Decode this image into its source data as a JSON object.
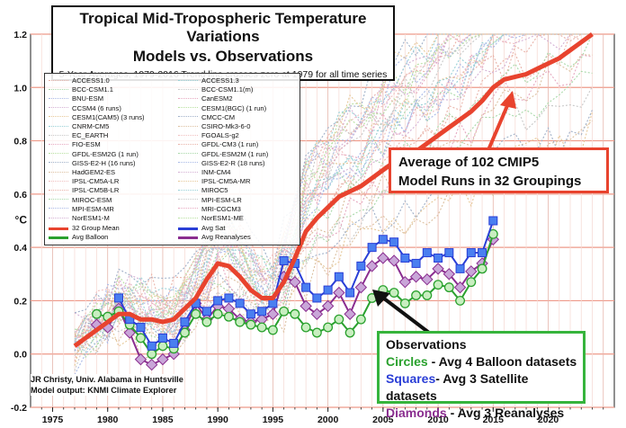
{
  "chart_data": {
    "type": "line",
    "title": "Tropical Mid-Tropospheric Temperature Variations",
    "subtitle": "Models vs. Observations",
    "note": "5-Year Averages, 1979-2016 Trend line crosses zero at 1979 for all time series",
    "ylabel": "°C",
    "xlabel": "",
    "xlim": [
      1973,
      2026
    ],
    "ylim": [
      -0.2,
      1.2
    ],
    "x_ticks": [
      "1975",
      "1980",
      "1985",
      "1990",
      "1995",
      "2000",
      "2005",
      "2010",
      "2015",
      "2020"
    ],
    "y_ticks": [
      "-0.2",
      "0.0",
      "0.2",
      "0.4",
      "0.6",
      "0.8",
      "1.0",
      "1.2"
    ],
    "grid": true,
    "legend_position": "upper-left",
    "model_run_colors": [
      "#e9b2a8",
      "#a8d8a8",
      "#a8b8e6",
      "#d4b0d4",
      "#e6c898",
      "#98d0d6",
      "#c8c8c8",
      "#e6a8c0",
      "#b8e0a0",
      "#a0b0c8",
      "#dcc0a0",
      "#f0c0c0"
    ],
    "model_names_left": [
      "ACCESS1.0",
      "BCC-CSM1.1",
      "BNU-ESM",
      "CCSM4 (6 runs)",
      "CESM1(CAM5) (3 runs)",
      "CNRM-CM5",
      "EC_EARTH",
      "FIO-ESM",
      "GFDL-ESM2G (1 run)",
      "GISS-E2-H (16 runs)",
      "HadGEM2-ES",
      "IPSL-CM5A-LR",
      "IPSL-CM5B-LR",
      "MIROC-ESM",
      "MPI-ESM-MR",
      "NorESM1-M"
    ],
    "model_names_right": [
      "ACCESS1.3",
      "BCC-CSM1.1(m)",
      "CanESM2",
      "CESM1(BGC) (1 run)",
      "CMCC-CM",
      "CSIRO-Mk3-6-0",
      "FGOALS-g2",
      "GFDL-CM3 (1 run)",
      "GFDL-ESM2M (1 run)",
      "GISS-E2-R (18 runs)",
      "INM-CM4",
      "IPSL-CM5A-MR",
      "MIROC5",
      "MPI-ESM-LR",
      "MRI-CGCM3",
      "NorESM1-ME"
    ],
    "series": [
      {
        "name": "32 Group Mean",
        "color": "#e8432e",
        "marker": "none",
        "x": [
          1977,
          1978,
          1979,
          1980,
          1981,
          1982,
          1983,
          1984,
          1985,
          1986,
          1987,
          1988,
          1989,
          1990,
          1991,
          1992,
          1993,
          1994,
          1995,
          1996,
          1997,
          1998,
          1999,
          2000,
          2001,
          2002,
          2003,
          2004,
          2005,
          2006,
          2007,
          2008,
          2009,
          2010,
          2011,
          2012,
          2013,
          2014,
          2015,
          2016,
          2017,
          2018,
          2019,
          2020,
          2021,
          2022,
          2023,
          2024
        ],
        "values": [
          0.03,
          0.06,
          0.09,
          0.12,
          0.15,
          0.15,
          0.13,
          0.13,
          0.12,
          0.13,
          0.17,
          0.21,
          0.28,
          0.34,
          0.33,
          0.29,
          0.24,
          0.21,
          0.21,
          0.27,
          0.36,
          0.46,
          0.51,
          0.55,
          0.59,
          0.61,
          0.63,
          0.66,
          0.69,
          0.72,
          0.75,
          0.76,
          0.79,
          0.82,
          0.85,
          0.88,
          0.91,
          0.95,
          1.0,
          1.03,
          1.04,
          1.05,
          1.07,
          1.09,
          1.11,
          1.14,
          1.17,
          1.2
        ]
      },
      {
        "name": "Avg Sat",
        "color": "#2a3ed6",
        "marker": "square",
        "x": [
          1981,
          1982,
          1983,
          1984,
          1985,
          1986,
          1987,
          1988,
          1989,
          1990,
          1991,
          1992,
          1993,
          1994,
          1995,
          1996,
          1997,
          1998,
          1999,
          2000,
          2001,
          2002,
          2003,
          2004,
          2005,
          2006,
          2007,
          2008,
          2009,
          2010,
          2011,
          2012,
          2013,
          2014,
          2015
        ],
        "values": [
          0.21,
          0.13,
          0.1,
          0.03,
          0.06,
          0.04,
          0.12,
          0.19,
          0.16,
          0.2,
          0.21,
          0.19,
          0.15,
          0.16,
          0.19,
          0.35,
          0.34,
          0.25,
          0.21,
          0.24,
          0.29,
          0.23,
          0.33,
          0.4,
          0.43,
          0.42,
          0.36,
          0.34,
          0.38,
          0.36,
          0.38,
          0.32,
          0.38,
          0.38,
          0.5
        ]
      },
      {
        "name": "Avg Balloon",
        "color": "#2aa12e",
        "marker": "circle",
        "x": [
          1979,
          1980,
          1981,
          1982,
          1983,
          1984,
          1985,
          1986,
          1987,
          1988,
          1989,
          1990,
          1991,
          1992,
          1993,
          1994,
          1995,
          1996,
          1997,
          1998,
          1999,
          2000,
          2001,
          2002,
          2003,
          2004,
          2005,
          2006,
          2007,
          2008,
          2009,
          2010,
          2011,
          2012,
          2013,
          2014,
          2015
        ],
        "values": [
          0.15,
          0.14,
          0.16,
          0.11,
          0.06,
          0.0,
          0.03,
          0.02,
          0.08,
          0.15,
          0.12,
          0.15,
          0.14,
          0.12,
          0.11,
          0.1,
          0.09,
          0.16,
          0.15,
          0.1,
          0.08,
          0.1,
          0.13,
          0.08,
          0.13,
          0.21,
          0.24,
          0.23,
          0.19,
          0.22,
          0.22,
          0.26,
          0.25,
          0.2,
          0.27,
          0.32,
          0.45
        ]
      },
      {
        "name": "Avg Reanalyses",
        "color": "#8a2d8f",
        "marker": "diamond",
        "x": [
          1979,
          1980,
          1981,
          1982,
          1983,
          1984,
          1985,
          1986,
          1987,
          1988,
          1989,
          1990,
          1991,
          1992,
          1993,
          1994,
          1995,
          1996,
          1997,
          1998,
          1999,
          2000,
          2001,
          2002,
          2003,
          2004,
          2005,
          2006,
          2007,
          2008,
          2009,
          2010,
          2011,
          2012,
          2013,
          2014,
          2015
        ],
        "values": [
          0.11,
          0.1,
          0.17,
          0.08,
          -0.02,
          -0.04,
          -0.02,
          0.0,
          0.09,
          0.19,
          0.13,
          0.18,
          0.17,
          0.13,
          0.12,
          0.13,
          0.15,
          0.29,
          0.27,
          0.18,
          0.15,
          0.18,
          0.23,
          0.15,
          0.25,
          0.33,
          0.36,
          0.35,
          0.27,
          0.29,
          0.28,
          0.32,
          0.3,
          0.25,
          0.31,
          0.34,
          0.43
        ]
      }
    ]
  },
  "legend_keys": {
    "group_mean": "32 Group Mean",
    "avg_sat": "Avg Sat",
    "avg_balloon": "Avg Balloon",
    "avg_reanalyses": "Avg Reanalyses"
  },
  "callouts": {
    "models_line1": "Average of 102 CMIP5",
    "models_line2": "Model Runs in 32 Groupings",
    "obs_heading": "Observations",
    "circles_word": "Circles",
    "circles_text": " - Avg 4 Balloon datasets",
    "squares_word": "Squares",
    "squares_text": "- Avg 3 Satellite datasets",
    "diamonds_word": "Diamonds",
    "diamonds_text": " - Avg 3 Reanalyses"
  },
  "credit": {
    "line1": "JR Christy, Univ. Alabama in Huntsville",
    "line2": "Model output: KNMI Climate Explorer"
  }
}
